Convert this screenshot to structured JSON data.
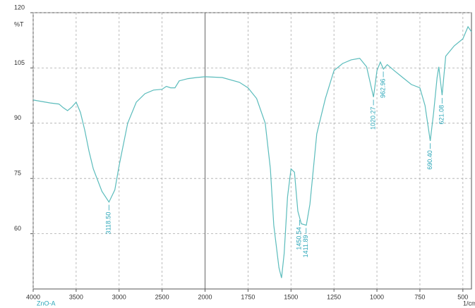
{
  "chart_data": {
    "type": "line",
    "x_label": "1/cm",
    "y_label": "%T",
    "sample_name": "ZnO-A",
    "xlim": [
      4000,
      450
    ],
    "ylim": [
      45,
      120
    ],
    "xticks": [
      4000,
      3500,
      3000,
      2500,
      2000,
      1750,
      1500,
      1250,
      1000,
      750,
      500
    ],
    "yticks": [
      60,
      75,
      90,
      105,
      120
    ],
    "grid": true,
    "series": [
      {
        "name": "ZnO-A",
        "color": "#5bbcbc",
        "x": [
          4000,
          3900,
          3800,
          3700,
          3650,
          3600,
          3550,
          3500,
          3450,
          3400,
          3350,
          3300,
          3200,
          3118,
          3050,
          3000,
          2900,
          2800,
          2700,
          2600,
          2500,
          2450,
          2400,
          2350,
          2300,
          2200,
          2100,
          2000,
          1900,
          1800,
          1750,
          1700,
          1650,
          1620,
          1600,
          1570,
          1555,
          1540,
          1520,
          1500,
          1480,
          1460,
          1440,
          1411,
          1390,
          1370,
          1350,
          1300,
          1250,
          1200,
          1150,
          1100,
          1060,
          1020,
          1000,
          980,
          962,
          940,
          900,
          850,
          800,
          750,
          720,
          690,
          670,
          650,
          640,
          621,
          600,
          550,
          500,
          470,
          450
        ],
        "values": [
          96.3,
          95.9,
          95.5,
          95.2,
          94.2,
          93.4,
          94.4,
          95.7,
          92.9,
          88.1,
          82.4,
          77.6,
          71.5,
          68.6,
          71.9,
          78.5,
          90.0,
          95.7,
          98.0,
          99.0,
          99.2,
          100.0,
          99.6,
          99.6,
          101.5,
          102.1,
          102.4,
          102.6,
          102.4,
          101.1,
          99.6,
          96.7,
          90.0,
          77.6,
          62.3,
          50.8,
          48.0,
          54.6,
          70.0,
          77.6,
          76.7,
          66.1,
          62.7,
          62.3,
          68.0,
          77.6,
          87.1,
          96.7,
          104.3,
          106.2,
          107.2,
          107.6,
          105.3,
          97.1,
          104.3,
          106.6,
          104.7,
          105.9,
          104.3,
          102.4,
          100.5,
          99.6,
          94.8,
          85.2,
          92.9,
          102.4,
          105.3,
          97.6,
          108.2,
          111.0,
          112.9,
          116.2,
          114.8
        ]
      }
    ],
    "peaks": [
      {
        "value": 3118.5,
        "label": "3118.50"
      },
      {
        "value": 1450.54,
        "label": "1450.54"
      },
      {
        "value": 1411.89,
        "label": "1411.89"
      },
      {
        "value": 1020.27,
        "label": "1020.27"
      },
      {
        "value": 962.96,
        "label": "962.96"
      },
      {
        "value": 690.4,
        "label": "690.40"
      },
      {
        "value": 621.08,
        "label": "621.08"
      }
    ],
    "peak_color": "#2aa6b8"
  }
}
